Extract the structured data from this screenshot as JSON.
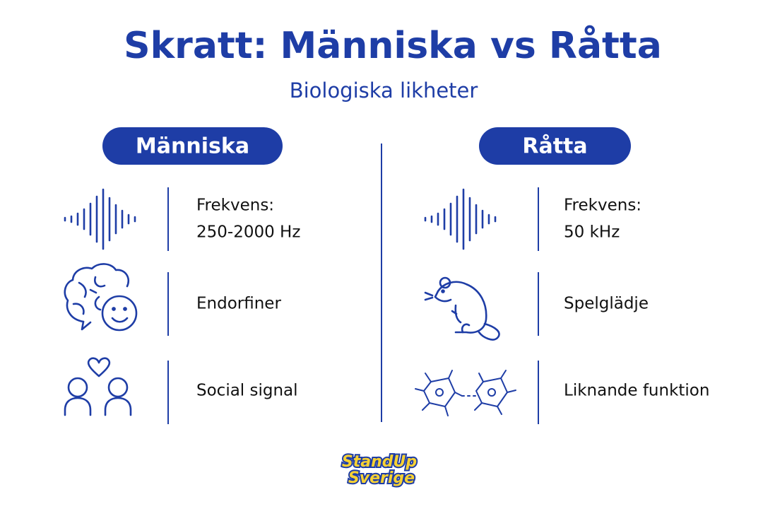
{
  "header": {
    "title": "Skratt: Människa vs Råtta",
    "subtitle": "Biologiska likheter"
  },
  "columns": [
    {
      "heading": "Människa",
      "items": [
        {
          "lines": [
            "Frekvens:",
            "250-2000 Hz"
          ]
        },
        {
          "lines": [
            "Endorfiner"
          ]
        },
        {
          "lines": [
            "Social signal"
          ]
        }
      ]
    },
    {
      "heading": "Råtta",
      "items": [
        {
          "lines": [
            "Frekvens:",
            "50 kHz"
          ]
        },
        {
          "lines": [
            "Spelglädje"
          ]
        },
        {
          "lines": [
            "Liknande funktion"
          ]
        }
      ]
    }
  ],
  "logo": {
    "lines": [
      "StandUp",
      "Sverige"
    ]
  }
}
